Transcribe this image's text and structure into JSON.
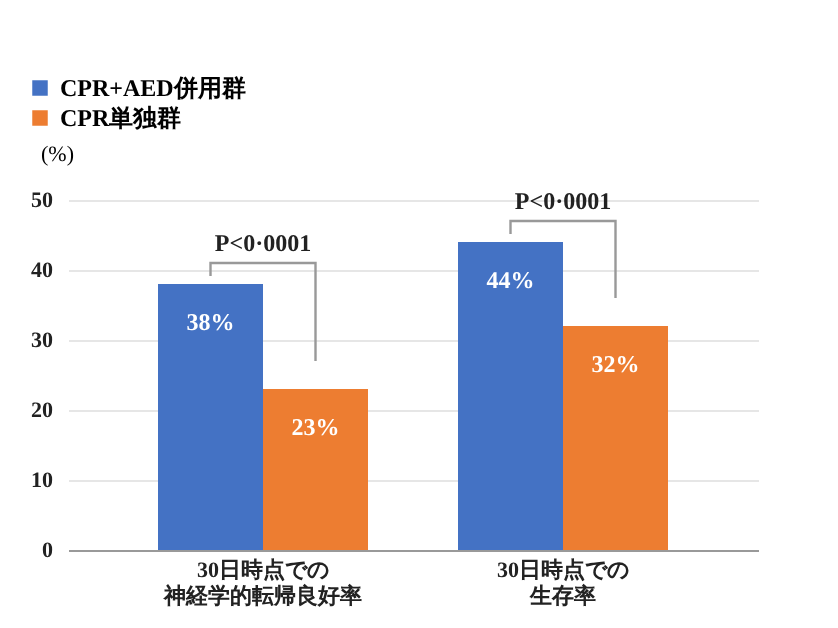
{
  "chart_data": {
    "type": "bar",
    "ylabel": "(%)",
    "categories": [
      "30日時点での神経学的転帰良好率",
      "30日時点での生存率"
    ],
    "series": [
      {
        "name": "CPR+AED併用群",
        "color": "#4472c4",
        "values": [
          38,
          44
        ],
        "value_labels": [
          "38%",
          "44%"
        ]
      },
      {
        "name": "CPR単独群",
        "color": "#ed7d31",
        "values": [
          23,
          32
        ],
        "value_labels": [
          "23%",
          "32%"
        ]
      }
    ],
    "ylim": [
      0,
      50
    ],
    "yticks": [
      0,
      10,
      20,
      30,
      40,
      50
    ],
    "grid": "y",
    "legend": "top left",
    "annotations": [
      "P<0·0001",
      "P<0·0001"
    ]
  }
}
